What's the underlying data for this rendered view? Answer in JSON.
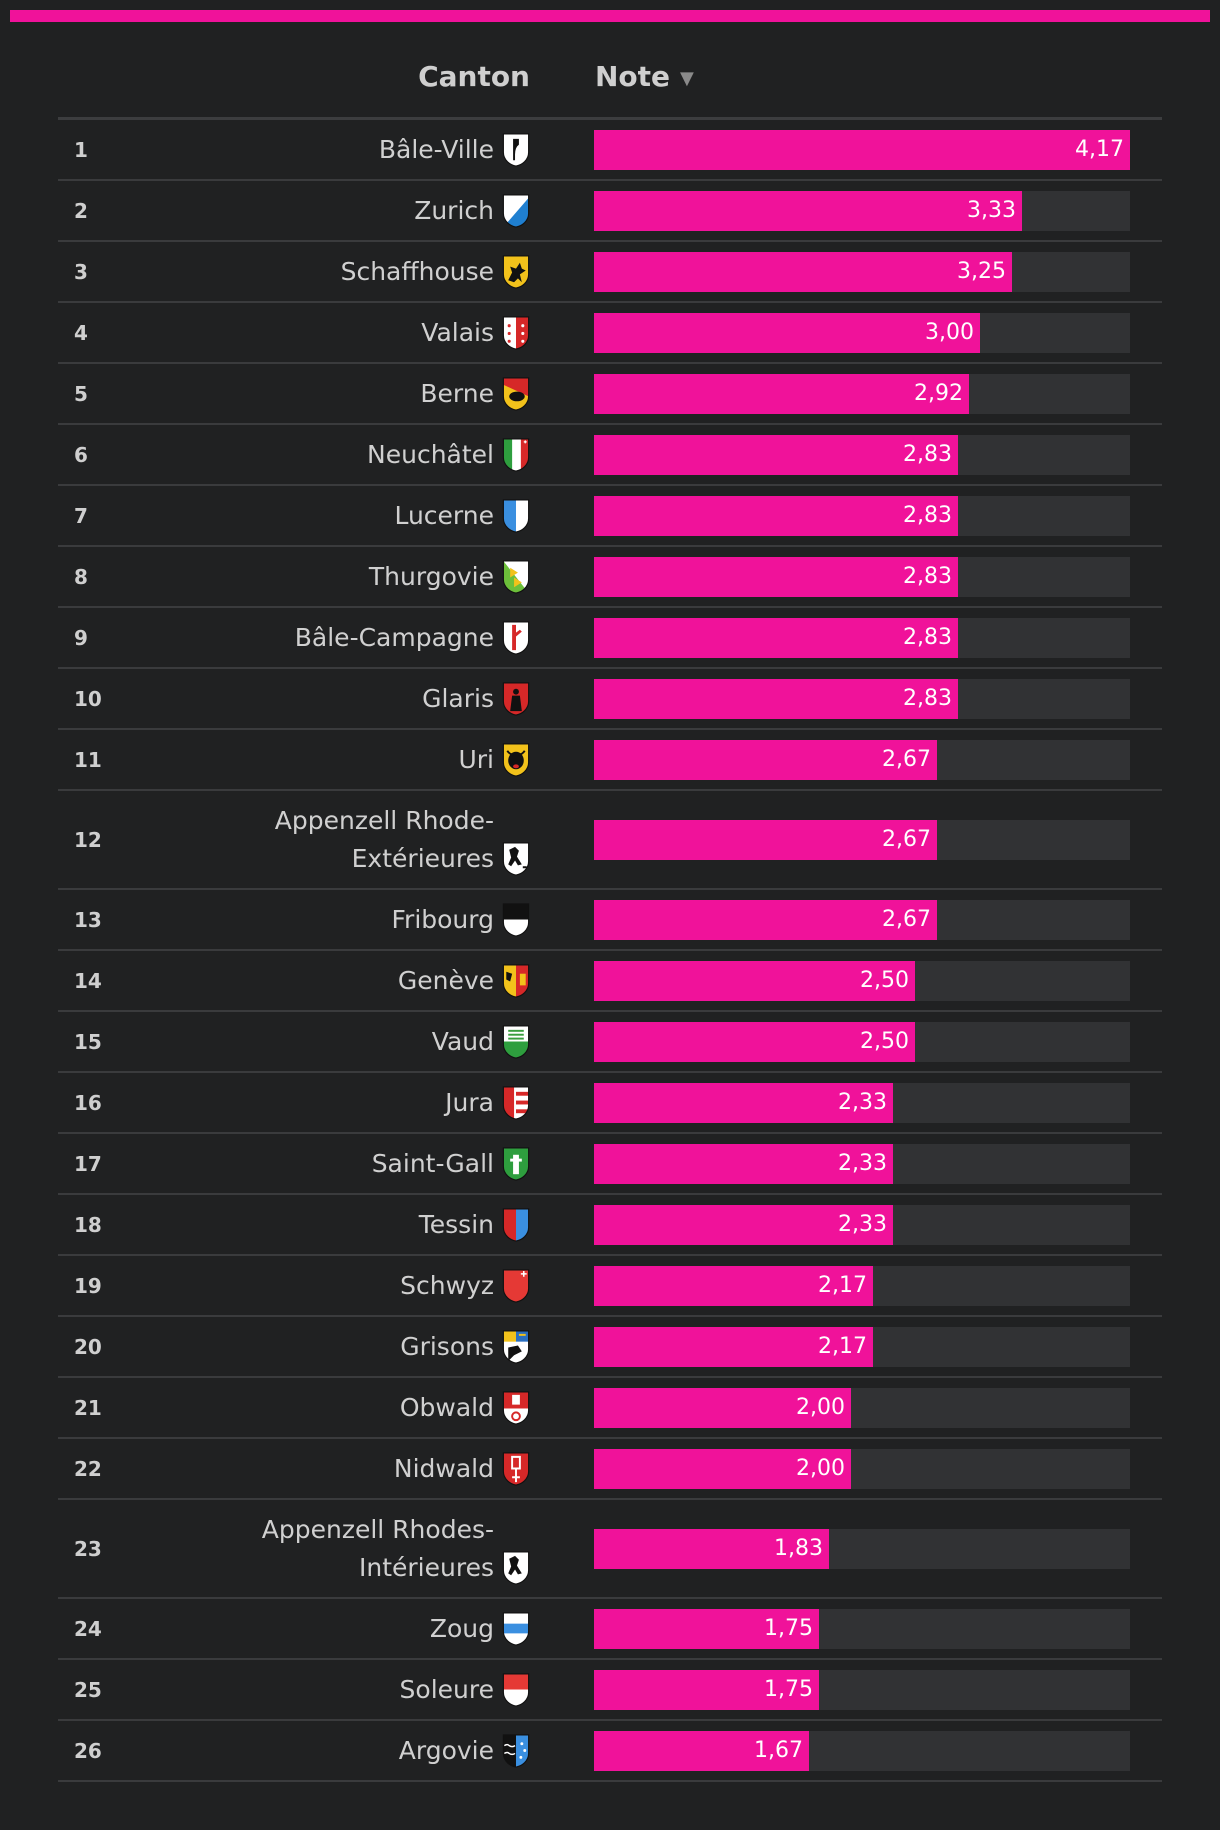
{
  "colors": {
    "accent": "#f0129a",
    "background": "#202122",
    "track": "#313234"
  },
  "header": {
    "canton_label": "Canton",
    "note_label": "Note",
    "sort_icon": "sort-desc-icon"
  },
  "chart_data": {
    "type": "bar",
    "orientation": "horizontal",
    "xlim": [
      0,
      4.17
    ],
    "columns": [
      "Canton",
      "Note"
    ],
    "rows": [
      {
        "rank": "1",
        "name": "Bâle-Ville",
        "value": 4.17,
        "label": "4,17",
        "crest": "basel-stadt"
      },
      {
        "rank": "2",
        "name": "Zurich",
        "value": 3.33,
        "label": "3,33",
        "crest": "zurich"
      },
      {
        "rank": "3",
        "name": "Schaffhouse",
        "value": 3.25,
        "label": "3,25",
        "crest": "schaffhausen"
      },
      {
        "rank": "4",
        "name": "Valais",
        "value": 3.0,
        "label": "3,00",
        "crest": "valais"
      },
      {
        "rank": "5",
        "name": "Berne",
        "value": 2.92,
        "label": "2,92",
        "crest": "bern"
      },
      {
        "rank": "6",
        "name": "Neuchâtel",
        "value": 2.83,
        "label": "2,83",
        "crest": "neuchatel"
      },
      {
        "rank": "7",
        "name": "Lucerne",
        "value": 2.83,
        "label": "2,83",
        "crest": "lucerne"
      },
      {
        "rank": "8",
        "name": "Thurgovie",
        "value": 2.83,
        "label": "2,83",
        "crest": "thurgau"
      },
      {
        "rank": "9",
        "name": "Bâle-Campagne",
        "value": 2.83,
        "label": "2,83",
        "crest": "basel-land"
      },
      {
        "rank": "10",
        "name": "Glaris",
        "value": 2.83,
        "label": "2,83",
        "crest": "glarus"
      },
      {
        "rank": "11",
        "name": "Uri",
        "value": 2.67,
        "label": "2,67",
        "crest": "uri"
      },
      {
        "rank": "12",
        "name": "Appenzell Rhode-Extérieures",
        "value": 2.67,
        "label": "2,67",
        "crest": "appenzell-ar"
      },
      {
        "rank": "13",
        "name": "Fribourg",
        "value": 2.67,
        "label": "2,67",
        "crest": "fribourg"
      },
      {
        "rank": "14",
        "name": "Genève",
        "value": 2.5,
        "label": "2,50",
        "crest": "geneva"
      },
      {
        "rank": "15",
        "name": "Vaud",
        "value": 2.5,
        "label": "2,50",
        "crest": "vaud"
      },
      {
        "rank": "16",
        "name": "Jura",
        "value": 2.33,
        "label": "2,33",
        "crest": "jura"
      },
      {
        "rank": "17",
        "name": "Saint-Gall",
        "value": 2.33,
        "label": "2,33",
        "crest": "st-gallen"
      },
      {
        "rank": "18",
        "name": "Tessin",
        "value": 2.33,
        "label": "2,33",
        "crest": "ticino"
      },
      {
        "rank": "19",
        "name": "Schwyz",
        "value": 2.17,
        "label": "2,17",
        "crest": "schwyz"
      },
      {
        "rank": "20",
        "name": "Grisons",
        "value": 2.17,
        "label": "2,17",
        "crest": "graubunden"
      },
      {
        "rank": "21",
        "name": "Obwald",
        "value": 2.0,
        "label": "2,00",
        "crest": "obwalden"
      },
      {
        "rank": "22",
        "name": "Nidwald",
        "value": 2.0,
        "label": "2,00",
        "crest": "nidwalden"
      },
      {
        "rank": "23",
        "name": "Appenzell Rhodes-Intérieures",
        "value": 1.83,
        "label": "1,83",
        "crest": "appenzell-ai"
      },
      {
        "rank": "24",
        "name": "Zoug",
        "value": 1.75,
        "label": "1,75",
        "crest": "zug"
      },
      {
        "rank": "25",
        "name": "Soleure",
        "value": 1.75,
        "label": "1,75",
        "crest": "solothurn"
      },
      {
        "rank": "26",
        "name": "Argovie",
        "value": 1.67,
        "label": "1,67",
        "crest": "aargau"
      }
    ]
  }
}
